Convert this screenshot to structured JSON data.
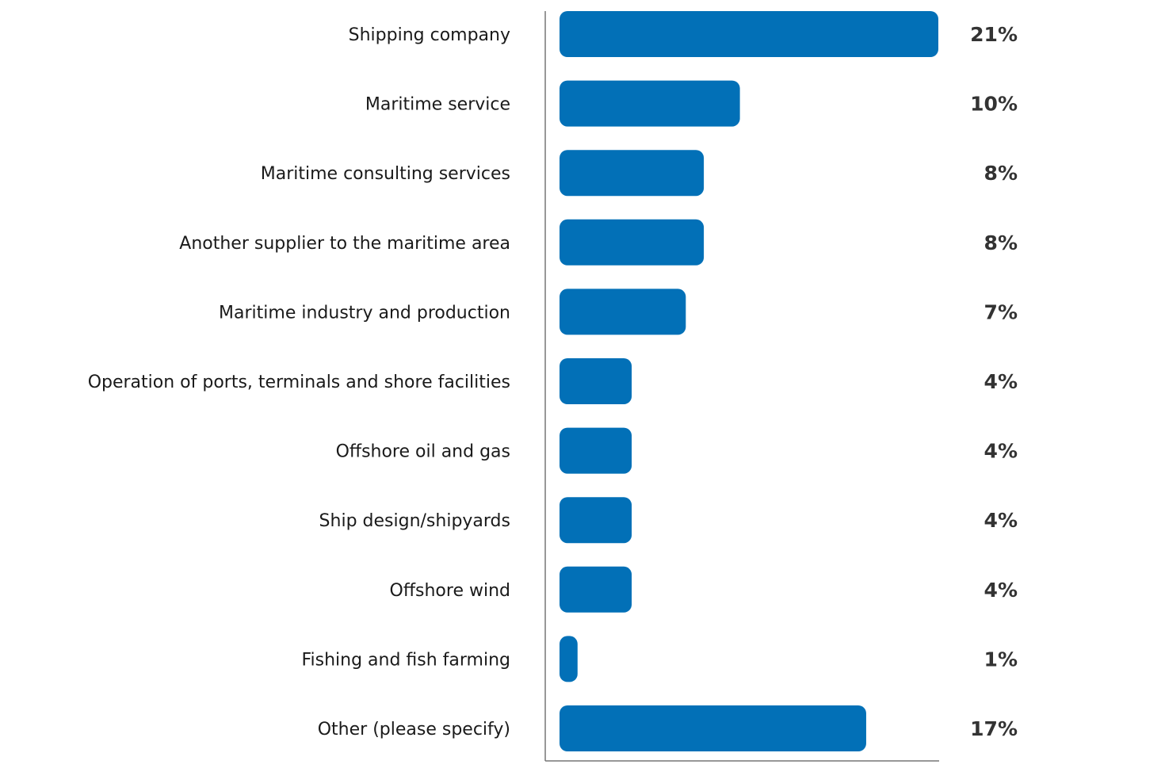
{
  "chart_data": {
    "type": "bar",
    "orientation": "horizontal",
    "categories": [
      "Shipping company",
      "Maritime service",
      "Maritime consulting services",
      "Another supplier to the maritime area",
      "Maritime industry and production",
      "Operation of ports, terminals and shore facilities",
      "Offshore oil and gas",
      "Ship design/shipyards",
      "Offshore wind",
      "Fishing and fish farming",
      "Other (please specify)"
    ],
    "values": [
      21,
      10,
      8,
      8,
      7,
      4,
      4,
      4,
      4,
      1,
      17
    ],
    "value_labels": [
      "21%",
      "10%",
      "8%",
      "8%",
      "7%",
      "4%",
      "4%",
      "4%",
      "4%",
      "1%",
      "17%"
    ],
    "unit": "%",
    "xlim": [
      0,
      21
    ],
    "grid": false,
    "legend": "none",
    "bar_color": "#0270b7",
    "title": "",
    "xlabel": "",
    "ylabel": ""
  }
}
